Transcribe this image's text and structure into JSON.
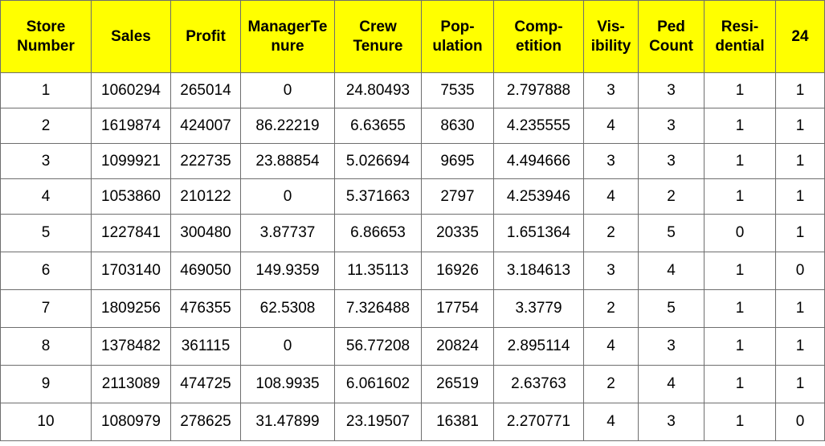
{
  "header_color": "#ffff00",
  "columns": [
    {
      "lines": [
        "Store",
        "Number"
      ]
    },
    {
      "lines": [
        "Sales"
      ]
    },
    {
      "lines": [
        "Profit"
      ]
    },
    {
      "lines": [
        "ManagerTe",
        "nure"
      ]
    },
    {
      "lines": [
        "Crew",
        "Tenure"
      ]
    },
    {
      "lines": [
        "Pop-",
        "ulation"
      ]
    },
    {
      "lines": [
        "Comp-",
        "etition"
      ]
    },
    {
      "lines": [
        "Vis-",
        "ibility"
      ]
    },
    {
      "lines": [
        "Ped",
        "Count"
      ]
    },
    {
      "lines": [
        "Resi-",
        "dential"
      ]
    },
    {
      "lines": [
        "24"
      ]
    }
  ],
  "rows": [
    [
      "1",
      "1060294",
      "265014",
      "0",
      "24.80493",
      "7535",
      "2.797888",
      "3",
      "3",
      "1",
      "1"
    ],
    [
      "2",
      "1619874",
      "424007",
      "86.22219",
      "6.63655",
      "8630",
      "4.235555",
      "4",
      "3",
      "1",
      "1"
    ],
    [
      "3",
      "1099921",
      "222735",
      "23.88854",
      "5.026694",
      "9695",
      "4.494666",
      "3",
      "3",
      "1",
      "1"
    ],
    [
      "4",
      "1053860",
      "210122",
      "0",
      "5.371663",
      "2797",
      "4.253946",
      "4",
      "2",
      "1",
      "1"
    ],
    [
      "5",
      "1227841",
      "300480",
      "3.87737",
      "6.86653",
      "20335",
      "1.651364",
      "2",
      "5",
      "0",
      "1"
    ],
    [
      "6",
      "1703140",
      "469050",
      "149.9359",
      "11.35113",
      "16926",
      "3.184613",
      "3",
      "4",
      "1",
      "0"
    ],
    [
      "7",
      "1809256",
      "476355",
      "62.5308",
      "7.326488",
      "17754",
      "3.3779",
      "2",
      "5",
      "1",
      "1"
    ],
    [
      "8",
      "1378482",
      "361115",
      "0",
      "56.77208",
      "20824",
      "2.895114",
      "4",
      "3",
      "1",
      "1"
    ],
    [
      "9",
      "2113089",
      "474725",
      "108.9935",
      "6.061602",
      "26519",
      "2.63763",
      "2",
      "4",
      "1",
      "1"
    ],
    [
      "10",
      "1080979",
      "278625",
      "31.47899",
      "23.19507",
      "16381",
      "2.270771",
      "4",
      "3",
      "1",
      "0"
    ]
  ]
}
